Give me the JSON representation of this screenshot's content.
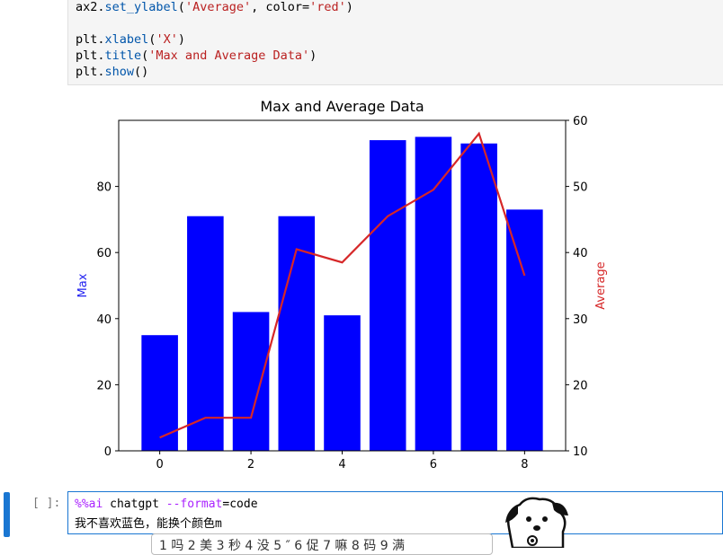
{
  "code_cell_top": {
    "lines": [
      {
        "pre": "ax2.",
        "fn": "set_ylabel",
        "mid": "(",
        "str": "'Average'",
        "post": ", color=",
        "str2": "'red'",
        "end": ")"
      },
      {
        "pre": "",
        "fn": "",
        "mid": "",
        "str": "",
        "post": "",
        "str2": "",
        "end": ""
      },
      {
        "pre": "plt.",
        "fn": "xlabel",
        "mid": "(",
        "str": "'X'",
        "post": "",
        "str2": "",
        "end": ")"
      },
      {
        "pre": "plt.",
        "fn": "title",
        "mid": "(",
        "str": "'Max and Average Data'",
        "post": "",
        "str2": "",
        "end": ")"
      },
      {
        "pre": "plt.",
        "fn": "show",
        "mid": "()",
        "str": "",
        "post": "",
        "str2": "",
        "end": ""
      }
    ]
  },
  "chart_data": {
    "type": "bar",
    "title": "Max and Average Data",
    "xlabel": "",
    "ylabel": "Max",
    "ylabel_color": "#1e1ef0",
    "y2label": "Average",
    "y2label_color": "#d62728",
    "x": [
      0,
      1,
      2,
      3,
      4,
      5,
      6,
      7,
      8
    ],
    "x_ticks": [
      0,
      2,
      4,
      6,
      8
    ],
    "ylim": [
      0,
      100
    ],
    "y_ticks": [
      0,
      20,
      40,
      60,
      80
    ],
    "y2lim": [
      10,
      60
    ],
    "y2_ticks": [
      10,
      20,
      30,
      40,
      50,
      60
    ],
    "series": [
      {
        "values": [
          35,
          71,
          42,
          71,
          41,
          94,
          95,
          93,
          73
        ],
        "color": "#0000ff",
        "axis": "left",
        "kind": "bar"
      },
      {
        "values": [
          12,
          15,
          15,
          40.5,
          38.5,
          45.5,
          49.5,
          58,
          36.5
        ],
        "color": "#d62728",
        "axis": "right",
        "kind": "line"
      }
    ],
    "grid": false
  },
  "input_cell": {
    "prompt": "[ ]:",
    "line1_magic": "%%ai",
    "line1_rest": " chatgpt ",
    "line1_flag": "--format",
    "line1_eq": "=code",
    "line2": "我不喜欢蓝色，能换个颜色m"
  },
  "ime": {
    "candidates": "1 吗  2 美  3 秒  4 没  5 ″  6 促  7 嘛  8 码  9 满"
  },
  "colors": {
    "accent": "#1976d2",
    "bar": "#0000ff",
    "line": "#d62728"
  }
}
